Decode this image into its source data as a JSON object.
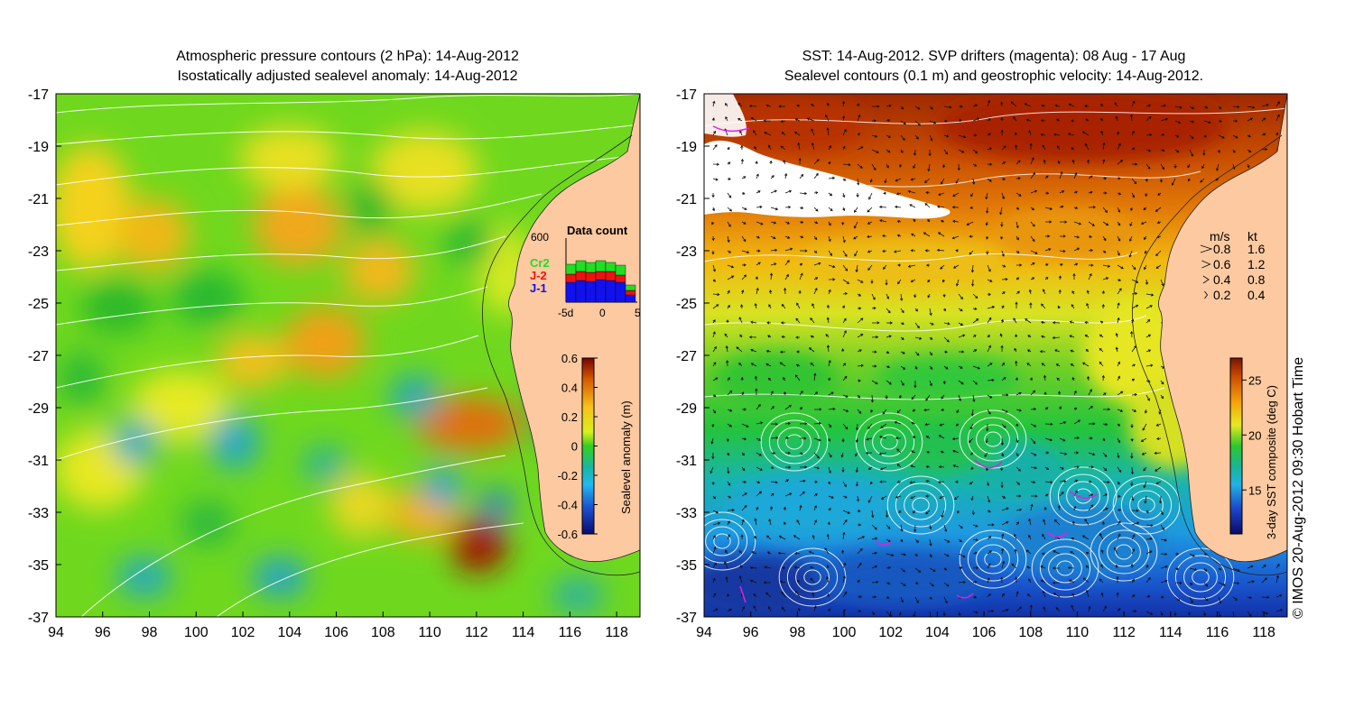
{
  "left_panel": {
    "title_line1": "Atmospheric pressure contours (2 hPa): 14-Aug-2012",
    "title_line2": "Isostatically adjusted sealevel anomaly: 14-Aug-2012",
    "colorbar": {
      "label": "Sealevel anomaly (m)",
      "ticks": [
        "0.6",
        "0.4",
        "0.2",
        "0",
        "-0.2",
        "-0.4",
        "-0.6"
      ],
      "tick_values": [
        0.6,
        0.4,
        0.2,
        0,
        -0.2,
        -0.4,
        -0.6
      ]
    },
    "data_count": {
      "title": "Data count",
      "max_label": "600",
      "x_labels": [
        "-5d",
        "0",
        "5"
      ],
      "legend": [
        {
          "name": "Cr2",
          "color": "#22dd22"
        },
        {
          "name": "J-2",
          "color": "#ee1111"
        },
        {
          "name": "J-1",
          "color": "#1111ee"
        }
      ]
    }
  },
  "right_panel": {
    "title_line1": "SST: 14-Aug-2012. SVP drifters (magenta): 08 Aug - 17 Aug",
    "title_line2": "Sealevel contours (0.1 m) and geostrophic velocity: 14-Aug-2012.",
    "colorbar": {
      "label": "3-day SST composite (deg C)",
      "ticks": [
        "25",
        "20",
        "15"
      ],
      "tick_values": [
        25,
        20,
        15
      ],
      "range": [
        11,
        27
      ]
    },
    "velocity_legend": {
      "header_ms": "m/s",
      "header_kt": "kt",
      "rows": [
        {
          "ms": "0.8",
          "kt": "1.6"
        },
        {
          "ms": "0.6",
          "kt": "1.2"
        },
        {
          "ms": "0.4",
          "kt": "0.8"
        },
        {
          "ms": "0.2",
          "kt": "0.4"
        }
      ]
    }
  },
  "axes": {
    "x_ticks": [
      "94",
      "96",
      "98",
      "100",
      "102",
      "104",
      "106",
      "108",
      "110",
      "112",
      "114",
      "116",
      "118"
    ],
    "y_ticks": [
      "-17",
      "-19",
      "-21",
      "-23",
      "-25",
      "-27",
      "-29",
      "-31",
      "-33",
      "-35",
      "-37"
    ],
    "lon_range": [
      94,
      119
    ],
    "lat_range": [
      -37,
      -17
    ]
  },
  "credit": "© IMOS 20-Aug-2012 09:30 Hobart Time",
  "colors": {
    "land": "#fcc9a0",
    "coast": "#222222",
    "contour": "#ffffff",
    "drifter": "#dd22dd"
  }
}
